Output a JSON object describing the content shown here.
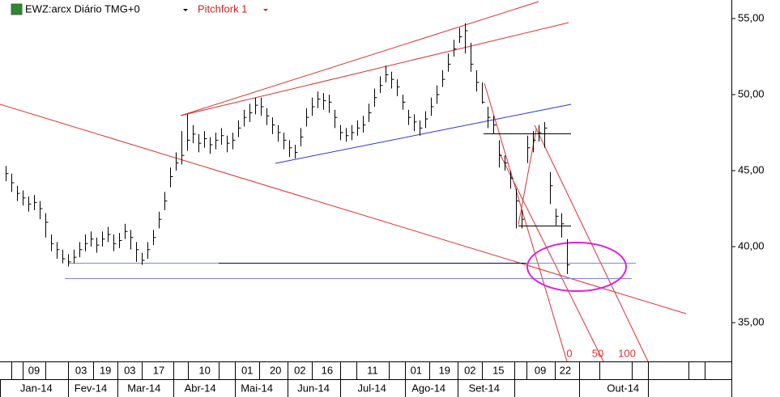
{
  "chart_data": {
    "type": "ohlc",
    "title": "EWZ:arcx Diário TMG+0",
    "subtitle": "Pitchfork 1",
    "annotations": [
      "0",
      "50",
      "100"
    ],
    "color": "#000000",
    "ylim": [
      32.45,
      56.22
    ],
    "yticks": [
      {
        "value": 35,
        "label": "35,00"
      },
      {
        "value": 40,
        "label": "40,00"
      },
      {
        "value": 45,
        "label": "45,00"
      },
      {
        "value": 50,
        "label": "50,00"
      },
      {
        "value": 55,
        "label": "55,00"
      }
    ],
    "xlim": [
      -1,
      128
    ],
    "xticks": [
      {
        "value": 5,
        "label": "09"
      },
      {
        "value": 13.3,
        "label": "03"
      },
      {
        "value": 17.6,
        "label": "19"
      },
      {
        "value": 21.9,
        "label": "03"
      },
      {
        "value": 27,
        "label": "17"
      },
      {
        "value": 35.1,
        "label": "10"
      },
      {
        "value": 42.6,
        "label": "01"
      },
      {
        "value": 47.6,
        "label": "20"
      },
      {
        "value": 51.9,
        "label": "02"
      },
      {
        "value": 56.7,
        "label": "16"
      },
      {
        "value": 64.7,
        "label": "11"
      },
      {
        "value": 72.4,
        "label": "01"
      },
      {
        "value": 77.4,
        "label": "19"
      },
      {
        "value": 81.9,
        "label": "02"
      },
      {
        "value": 86.9,
        "label": "15"
      },
      {
        "value": 94.3,
        "label": "09"
      },
      {
        "value": 98.7,
        "label": "22"
      }
    ],
    "month_ticks": [
      {
        "value": 5.4,
        "label": "Jan-14"
      },
      {
        "value": 15,
        "label": "Fev-14"
      },
      {
        "value": 24.4,
        "label": "Mar-14"
      },
      {
        "value": 34.3,
        "label": "Abr-14"
      },
      {
        "value": 44.3,
        "label": "Mai-14"
      },
      {
        "value": 54.3,
        "label": "Jun-14"
      },
      {
        "value": 64.6,
        "label": "Jul-14"
      },
      {
        "value": 74.6,
        "label": "Ago-14"
      },
      {
        "value": 84.4,
        "label": "Set-14"
      },
      {
        "value": 108.9,
        "label": "Out-14"
      }
    ],
    "high": [
      45.3,
      44.8,
      44.0,
      43.7,
      43.3,
      43.4,
      43.0,
      42.2,
      40.8,
      40.3,
      39.8,
      39.5,
      39.8,
      40.3,
      40.8,
      41.0,
      40.6,
      41.0,
      41.3,
      40.8,
      40.9,
      41.5,
      41.1,
      40.3,
      39.6,
      40.3,
      41.1,
      42.3,
      43.6,
      45.2,
      46.2,
      47.6,
      48.7,
      48.0,
      47.4,
      47.6,
      47.2,
      47.5,
      47.8,
      47.3,
      47.5,
      48.3,
      49.0,
      49.4,
      49.8,
      49.8,
      49.1,
      48.5,
      48.0,
      47.5,
      47.0,
      46.7,
      47.8,
      49.1,
      49.8,
      50.2,
      50.1,
      50.0,
      49.0,
      48.0,
      47.8,
      48.0,
      48.3,
      48.6,
      49.4,
      50.4,
      51.2,
      51.9,
      51.5,
      51.0,
      50.0,
      49.0,
      48.7,
      48.3,
      48.9,
      49.8,
      50.6,
      51.6,
      52.7,
      53.6,
      54.4,
      54.7,
      53.4,
      51.6,
      50.8,
      49.2,
      48.6,
      47.0,
      46.0,
      45.0,
      43.8,
      42.4,
      47.3,
      47.6,
      48.0,
      48.2,
      44.9,
      42.5,
      42.2,
      40.5
    ],
    "low": [
      44.3,
      43.6,
      43.0,
      42.7,
      42.3,
      42.4,
      41.8,
      40.6,
      39.7,
      39.2,
      38.9,
      38.7,
      38.9,
      39.3,
      39.7,
      40.0,
      39.6,
      40.0,
      40.3,
      39.7,
      39.9,
      40.5,
      39.8,
      39.0,
      38.8,
      39.2,
      40.1,
      41.2,
      42.4,
      43.9,
      45.0,
      45.4,
      46.3,
      46.8,
      46.2,
      46.5,
      46.1,
      46.4,
      46.7,
      46.2,
      46.4,
      47.2,
      47.9,
      48.2,
      48.7,
      48.6,
      48.0,
      47.4,
      46.9,
      46.4,
      45.9,
      45.8,
      46.6,
      47.9,
      48.6,
      49.1,
      49.0,
      48.8,
      47.8,
      47.0,
      46.9,
      47.0,
      47.3,
      47.5,
      48.2,
      49.2,
      50.1,
      50.8,
      50.4,
      49.9,
      49.0,
      48.0,
      47.6,
      47.3,
      47.8,
      48.6,
      49.4,
      50.5,
      51.5,
      52.5,
      53.4,
      52.7,
      51.5,
      50.2,
      49.4,
      47.8,
      47.4,
      45.2,
      45.0,
      43.8,
      41.2,
      41.2,
      45.5,
      46.2,
      46.9,
      46.5,
      42.8,
      41.4,
      40.6,
      38.2
    ],
    "close": [
      44.8,
      44.2,
      43.5,
      43.2,
      42.8,
      42.9,
      42.5,
      41.6,
      40.2,
      39.8,
      39.2,
      39.0,
      39.3,
      39.8,
      40.2,
      40.5,
      40.1,
      40.5,
      40.8,
      40.2,
      40.4,
      41.0,
      40.6,
      39.8,
      39.1,
      39.8,
      40.6,
      41.8,
      43.0,
      44.6,
      45.5,
      46.0,
      47.0,
      47.4,
      46.8,
      47.1,
      46.7,
      47.0,
      47.3,
      46.8,
      47.0,
      47.8,
      48.5,
      48.8,
      49.3,
      49.2,
      48.6,
      48.0,
      47.5,
      47.0,
      46.5,
      46.2,
      47.2,
      48.5,
      49.2,
      49.7,
      49.6,
      49.5,
      48.5,
      47.5,
      47.3,
      47.5,
      47.8,
      48.0,
      48.8,
      49.8,
      50.6,
      51.3,
      51.0,
      50.5,
      49.5,
      48.5,
      48.2,
      47.8,
      48.4,
      49.2,
      50.0,
      51.0,
      52.0,
      53.0,
      53.8,
      54.2,
      52.0,
      50.8,
      49.5,
      48.5,
      48.0,
      46.0,
      45.5,
      44.5,
      43.0,
      41.8,
      46.5,
      47.0,
      47.5,
      47.8,
      44.0,
      42.0,
      41.5,
      38.8
    ]
  }
}
